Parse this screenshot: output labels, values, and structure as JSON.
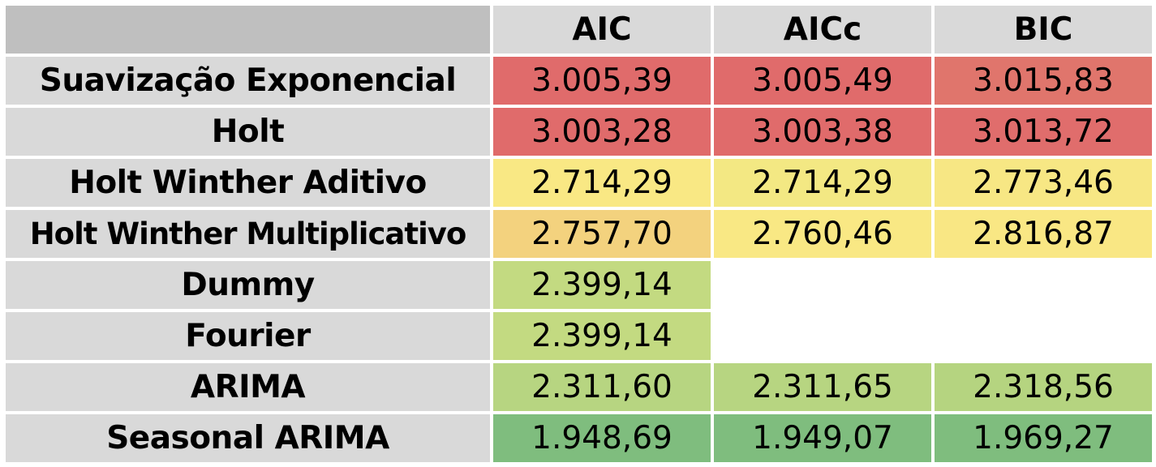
{
  "table": {
    "columns": [
      "AIC",
      "AICc",
      "BIC"
    ],
    "rows": [
      {
        "label": "Suavização Exponencial",
        "values": [
          "3.005,39",
          "3.005,49",
          "3.015,83"
        ],
        "colors": [
          "#e06b6b",
          "#e06b6b",
          "#e0756c"
        ]
      },
      {
        "label": "Holt",
        "values": [
          "3.003,28",
          "3.003,38",
          "3.013,72"
        ],
        "colors": [
          "#e06b6b",
          "#e06b6b",
          "#e06d6c"
        ]
      },
      {
        "label": "Holt Winther Aditivo",
        "values": [
          "2.714,29",
          "2.714,29",
          "2.773,46"
        ],
        "colors": [
          "#f9e884",
          "#f3e883",
          "#f7e784"
        ]
      },
      {
        "label": "Holt Winther Multiplicativo",
        "values": [
          "2.757,70",
          "2.760,46",
          "2.816,87"
        ],
        "colors": [
          "#f3d27e",
          "#f9e884",
          "#f9e784"
        ]
      },
      {
        "label": "Dummy",
        "values": [
          "2.399,14",
          "",
          ""
        ],
        "colors": [
          "#c3da81",
          "#ffffff",
          "#ffffff"
        ]
      },
      {
        "label": "Fourier",
        "values": [
          "2.399,14",
          "",
          ""
        ],
        "colors": [
          "#c3da81",
          "#ffffff",
          "#ffffff"
        ]
      },
      {
        "label": "ARIMA",
        "values": [
          "2.311,60",
          "2.311,65",
          "2.318,56"
        ],
        "colors": [
          "#b7d581",
          "#b7d581",
          "#b5d480"
        ]
      },
      {
        "label": "Seasonal ARIMA",
        "values": [
          "1.948,69",
          "1.949,07",
          "1.969,27"
        ],
        "colors": [
          "#7fbd7e",
          "#7fbd7e",
          "#7fbd7e"
        ]
      }
    ]
  }
}
